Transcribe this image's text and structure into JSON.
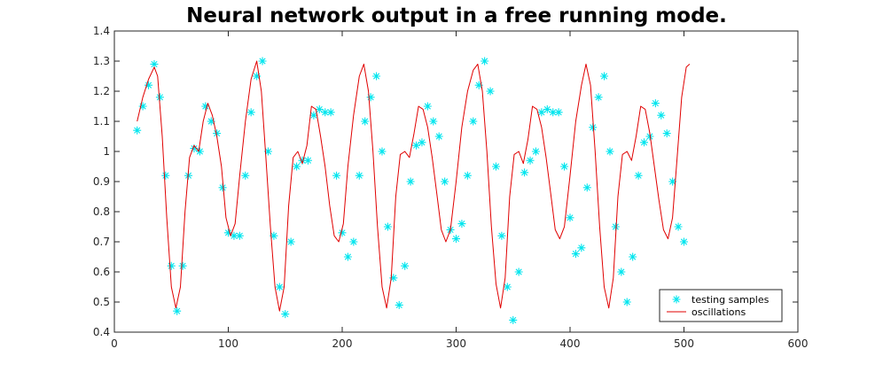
{
  "chart_data": {
    "type": "line",
    "title": "Neural network output in a free running mode.",
    "xlabel": "",
    "ylabel": "",
    "xlim": [
      0,
      600
    ],
    "ylim": [
      0.4,
      1.4
    ],
    "xticks": [
      0,
      100,
      200,
      300,
      400,
      500,
      600
    ],
    "yticks": [
      0.4,
      0.5,
      0.6,
      0.7,
      0.8,
      0.9,
      1,
      1.1,
      1.2,
      1.3,
      1.4
    ],
    "grid": false,
    "legend_position": "bottom-right",
    "series": [
      {
        "name": "testing samples",
        "style": "markers",
        "marker": "asterisk",
        "color": "#00e5ee",
        "points": [
          [
            20,
            1.07
          ],
          [
            25,
            1.15
          ],
          [
            30,
            1.22
          ],
          [
            35,
            1.29
          ],
          [
            40,
            1.18
          ],
          [
            45,
            0.92
          ],
          [
            50,
            0.62
          ],
          [
            55,
            0.47
          ],
          [
            60,
            0.62
          ],
          [
            65,
            0.92
          ],
          [
            70,
            1.01
          ],
          [
            75,
            1.0
          ],
          [
            80,
            1.15
          ],
          [
            85,
            1.1
          ],
          [
            90,
            1.06
          ],
          [
            95,
            0.88
          ],
          [
            100,
            0.73
          ],
          [
            105,
            0.72
          ],
          [
            110,
            0.72
          ],
          [
            115,
            0.92
          ],
          [
            120,
            1.13
          ],
          [
            125,
            1.25
          ],
          [
            130,
            1.3
          ],
          [
            135,
            1.0
          ],
          [
            140,
            0.72
          ],
          [
            145,
            0.55
          ],
          [
            150,
            0.46
          ],
          [
            155,
            0.7
          ],
          [
            160,
            0.95
          ],
          [
            165,
            0.97
          ],
          [
            170,
            0.97
          ],
          [
            175,
            1.12
          ],
          [
            180,
            1.14
          ],
          [
            185,
            1.13
          ],
          [
            190,
            1.13
          ],
          [
            195,
            0.92
          ],
          [
            200,
            0.73
          ],
          [
            205,
            0.65
          ],
          [
            210,
            0.7
          ],
          [
            215,
            0.92
          ],
          [
            220,
            1.1
          ],
          [
            225,
            1.18
          ],
          [
            230,
            1.25
          ],
          [
            235,
            1.0
          ],
          [
            240,
            0.75
          ],
          [
            245,
            0.58
          ],
          [
            250,
            0.49
          ],
          [
            255,
            0.62
          ],
          [
            260,
            0.9
          ],
          [
            265,
            1.02
          ],
          [
            270,
            1.03
          ],
          [
            275,
            1.15
          ],
          [
            280,
            1.1
          ],
          [
            285,
            1.05
          ],
          [
            290,
            0.9
          ],
          [
            295,
            0.74
          ],
          [
            300,
            0.71
          ],
          [
            305,
            0.76
          ],
          [
            310,
            0.92
          ],
          [
            315,
            1.1
          ],
          [
            320,
            1.22
          ],
          [
            325,
            1.3
          ],
          [
            330,
            1.2
          ],
          [
            335,
            0.95
          ],
          [
            340,
            0.72
          ],
          [
            345,
            0.55
          ],
          [
            350,
            0.44
          ],
          [
            355,
            0.6
          ],
          [
            360,
            0.93
          ],
          [
            365,
            0.97
          ],
          [
            370,
            1.0
          ],
          [
            375,
            1.13
          ],
          [
            380,
            1.14
          ],
          [
            385,
            1.13
          ],
          [
            390,
            1.13
          ],
          [
            395,
            0.95
          ],
          [
            400,
            0.78
          ],
          [
            405,
            0.66
          ],
          [
            410,
            0.68
          ],
          [
            415,
            0.88
          ],
          [
            420,
            1.08
          ],
          [
            425,
            1.18
          ],
          [
            430,
            1.25
          ],
          [
            435,
            1.0
          ],
          [
            440,
            0.75
          ],
          [
            445,
            0.6
          ],
          [
            450,
            0.5
          ],
          [
            455,
            0.65
          ],
          [
            460,
            0.92
          ],
          [
            465,
            1.03
          ],
          [
            470,
            1.05
          ],
          [
            475,
            1.16
          ],
          [
            480,
            1.12
          ],
          [
            485,
            1.06
          ],
          [
            490,
            0.9
          ],
          [
            495,
            0.75
          ],
          [
            500,
            0.7
          ]
        ]
      },
      {
        "name": "oscillations",
        "style": "line",
        "color": "#e00000",
        "points": [
          [
            20,
            1.1
          ],
          [
            25,
            1.18
          ],
          [
            30,
            1.24
          ],
          [
            35,
            1.28
          ],
          [
            38,
            1.25
          ],
          [
            42,
            1.05
          ],
          [
            46,
            0.78
          ],
          [
            50,
            0.55
          ],
          [
            54,
            0.48
          ],
          [
            58,
            0.55
          ],
          [
            62,
            0.8
          ],
          [
            66,
            0.98
          ],
          [
            70,
            1.02
          ],
          [
            74,
            1.0
          ],
          [
            78,
            1.1
          ],
          [
            82,
            1.16
          ],
          [
            86,
            1.12
          ],
          [
            90,
            1.05
          ],
          [
            94,
            0.95
          ],
          [
            98,
            0.78
          ],
          [
            102,
            0.72
          ],
          [
            106,
            0.76
          ],
          [
            110,
            0.92
          ],
          [
            115,
            1.1
          ],
          [
            120,
            1.24
          ],
          [
            125,
            1.3
          ],
          [
            129,
            1.2
          ],
          [
            133,
            0.98
          ],
          [
            137,
            0.75
          ],
          [
            141,
            0.55
          ],
          [
            145,
            0.47
          ],
          [
            149,
            0.55
          ],
          [
            153,
            0.82
          ],
          [
            157,
            0.98
          ],
          [
            161,
            1.0
          ],
          [
            165,
            0.96
          ],
          [
            169,
            1.02
          ],
          [
            173,
            1.15
          ],
          [
            177,
            1.14
          ],
          [
            181,
            1.05
          ],
          [
            185,
            0.95
          ],
          [
            189,
            0.82
          ],
          [
            193,
            0.72
          ],
          [
            197,
            0.7
          ],
          [
            201,
            0.76
          ],
          [
            205,
            0.95
          ],
          [
            210,
            1.12
          ],
          [
            215,
            1.25
          ],
          [
            219,
            1.29
          ],
          [
            223,
            1.2
          ],
          [
            227,
            1.0
          ],
          [
            231,
            0.75
          ],
          [
            235,
            0.55
          ],
          [
            239,
            0.48
          ],
          [
            243,
            0.58
          ],
          [
            247,
            0.85
          ],
          [
            251,
            0.99
          ],
          [
            255,
            1.0
          ],
          [
            259,
            0.98
          ],
          [
            263,
            1.06
          ],
          [
            267,
            1.15
          ],
          [
            271,
            1.14
          ],
          [
            275,
            1.08
          ],
          [
            279,
            0.98
          ],
          [
            283,
            0.86
          ],
          [
            287,
            0.74
          ],
          [
            291,
            0.7
          ],
          [
            295,
            0.74
          ],
          [
            300,
            0.9
          ],
          [
            305,
            1.08
          ],
          [
            310,
            1.2
          ],
          [
            315,
            1.27
          ],
          [
            319,
            1.29
          ],
          [
            323,
            1.2
          ],
          [
            327,
            1.0
          ],
          [
            331,
            0.75
          ],
          [
            335,
            0.56
          ],
          [
            339,
            0.48
          ],
          [
            343,
            0.58
          ],
          [
            347,
            0.85
          ],
          [
            351,
            0.99
          ],
          [
            355,
            1.0
          ],
          [
            359,
            0.96
          ],
          [
            363,
            1.04
          ],
          [
            367,
            1.15
          ],
          [
            371,
            1.14
          ],
          [
            375,
            1.08
          ],
          [
            379,
            0.98
          ],
          [
            383,
            0.86
          ],
          [
            387,
            0.74
          ],
          [
            391,
            0.71
          ],
          [
            395,
            0.75
          ],
          [
            400,
            0.92
          ],
          [
            405,
            1.1
          ],
          [
            410,
            1.22
          ],
          [
            414,
            1.29
          ],
          [
            418,
            1.22
          ],
          [
            422,
            1.0
          ],
          [
            426,
            0.75
          ],
          [
            430,
            0.55
          ],
          [
            434,
            0.48
          ],
          [
            438,
            0.58
          ],
          [
            442,
            0.85
          ],
          [
            446,
            0.99
          ],
          [
            450,
            1.0
          ],
          [
            454,
            0.97
          ],
          [
            458,
            1.05
          ],
          [
            462,
            1.15
          ],
          [
            466,
            1.14
          ],
          [
            470,
            1.06
          ],
          [
            474,
            0.95
          ],
          [
            478,
            0.84
          ],
          [
            482,
            0.74
          ],
          [
            486,
            0.71
          ],
          [
            490,
            0.78
          ],
          [
            494,
            0.98
          ],
          [
            498,
            1.18
          ],
          [
            502,
            1.28
          ],
          [
            505,
            1.29
          ]
        ]
      }
    ]
  }
}
